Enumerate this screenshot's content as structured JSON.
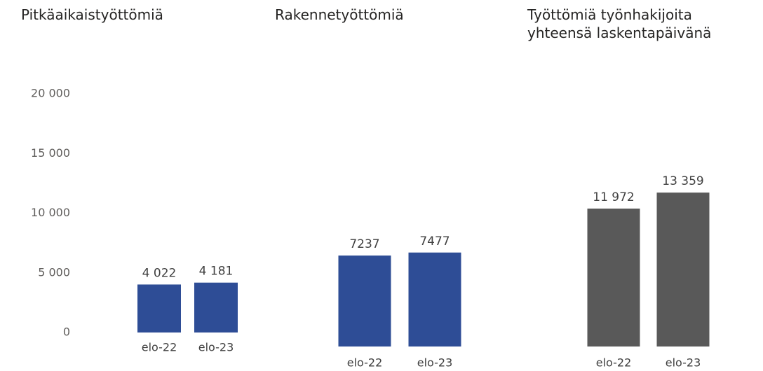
{
  "chart_data": [
    {
      "type": "bar",
      "title": "Pitkäaikaistyöttömiä",
      "categories": [
        "elo-22",
        "elo-23"
      ],
      "values": [
        4022,
        4181
      ],
      "value_labels": [
        "4 022",
        "4 181"
      ],
      "color": "#2e4d96",
      "ylim": [
        0,
        22000
      ],
      "yticks": [
        0,
        {
          "value": 5000,
          "label": "5 000"
        },
        {
          "value": 10000,
          "label": "10 000"
        },
        {
          "value": 15000,
          "label": "15 000"
        },
        {
          "value": 20000,
          "label": "20 000"
        }
      ]
    },
    {
      "type": "bar",
      "title": "Rakennetyöttömiä",
      "categories": [
        "elo-22",
        "elo-23"
      ],
      "values": [
        7237,
        7477
      ],
      "color": "#2e4d96",
      "ylim": [
        0,
        22000
      ]
    },
    {
      "type": "bar",
      "title": "Työttömiä työnhakijoita yhteensä laskentapäivänä",
      "categories": [
        "elo-22",
        "elo-23"
      ],
      "values": [
        11972,
        13359
      ],
      "value_labels": [
        "11 972",
        "13 359"
      ],
      "color": "#595959",
      "ylim": [
        0,
        24000
      ]
    }
  ]
}
